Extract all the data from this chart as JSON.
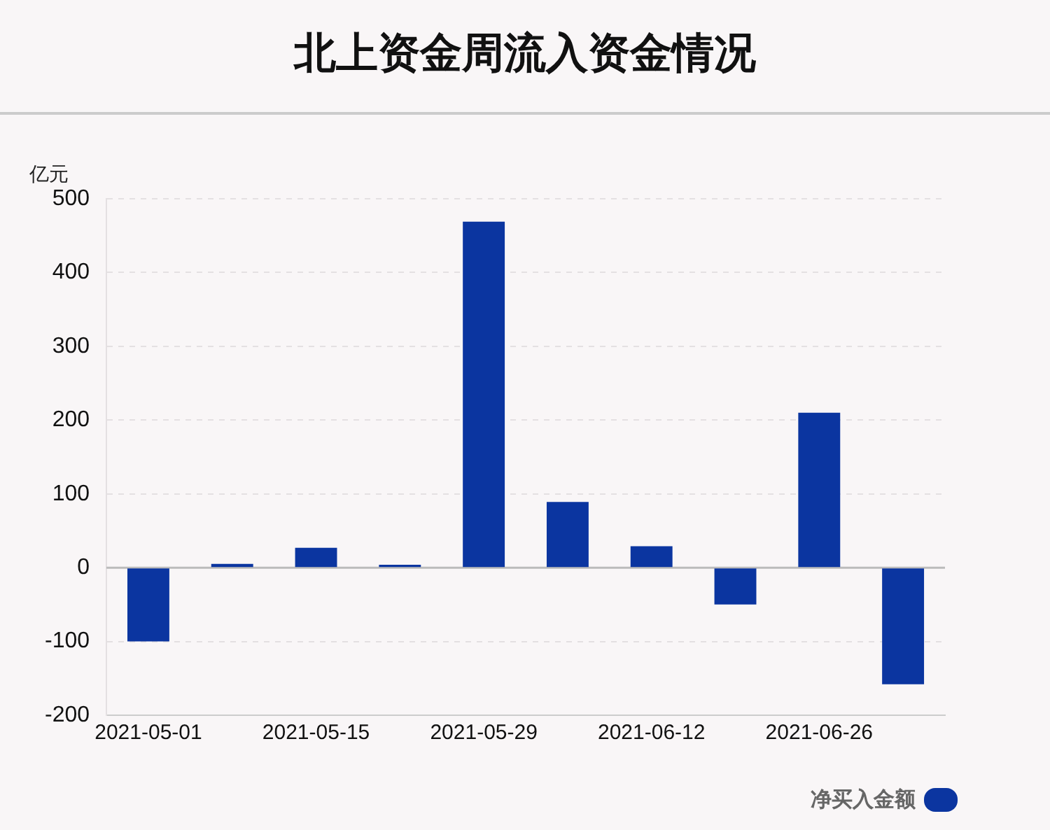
{
  "chart_data": {
    "type": "bar",
    "title": "北上资金周流入资金情况",
    "ylabel": "亿元",
    "categories": [
      "2021-05-01",
      null,
      "2021-05-15",
      null,
      "2021-05-29",
      null,
      "2021-06-12",
      null,
      "2021-06-26",
      null
    ],
    "series": [
      {
        "name": "净买入金额",
        "color": "#0b35a0",
        "values": [
          -100,
          5,
          27,
          4,
          469,
          89,
          29,
          -50,
          210,
          -158
        ]
      }
    ],
    "ylim": [
      -200,
      500
    ],
    "yticks": [
      -200,
      -100,
      0,
      100,
      200,
      300,
      400,
      500
    ],
    "grid": "y",
    "legend": "bottom right",
    "ref_lines": [
      {
        "axis": "y",
        "value": 0,
        "color": "#bbbbbb"
      }
    ]
  }
}
